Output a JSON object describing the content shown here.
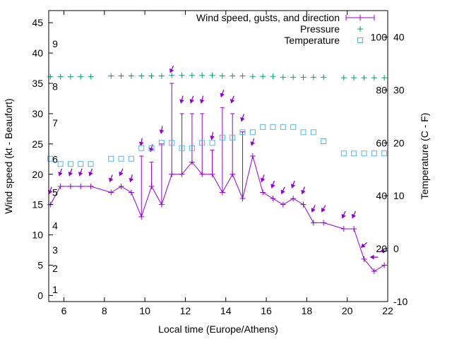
{
  "chart_data": {
    "type": "line",
    "xlabel": "Local time (Europe/Athens)",
    "ylabel": "Wind speed (kt - Beaufort)",
    "y2label": "Temperature (C - F)",
    "xlim": [
      5.25,
      22
    ],
    "ylim": [
      -1,
      47
    ],
    "y2lim": [
      -10,
      45
    ],
    "pressure_range": [
      0,
      110
    ],
    "x_ticks": [
      6,
      8,
      10,
      12,
      14,
      16,
      18,
      20,
      22
    ],
    "y_ticks": [
      0,
      5,
      10,
      15,
      20,
      25,
      30,
      35,
      40,
      45
    ],
    "y2_ticks": [
      -10,
      0,
      10,
      20,
      30,
      40
    ],
    "beaufort_labels": [
      {
        "label": "1",
        "y": 1
      },
      {
        "label": "2",
        "y": 4.5
      },
      {
        "label": "3",
        "y": 7.5
      },
      {
        "label": "4",
        "y": 11.5
      },
      {
        "label": "5",
        "y": 17
      },
      {
        "label": "6",
        "y": 22.5
      },
      {
        "label": "7",
        "y": 28.5
      },
      {
        "label": "8",
        "y": 34.5
      },
      {
        "label": "9",
        "y": 41.5
      }
    ],
    "pressure_axis_labels": [
      {
        "label": "20",
        "value": 20
      },
      {
        "label": "40",
        "value": 40
      },
      {
        "label": "60",
        "value": 60
      },
      {
        "label": "80",
        "value": 80
      },
      {
        "label": "100",
        "value": 100
      }
    ],
    "legend": [
      {
        "name": "Wind speed, gusts, and direction",
        "color": "#9400d3"
      },
      {
        "name": "Pressure",
        "color": "#009e73"
      },
      {
        "name": "Temperature",
        "color": "#56b4e9"
      }
    ],
    "wind": [
      {
        "x": 5.33,
        "speed": 15,
        "gust": 15,
        "dir": 20
      },
      {
        "x": 5.83,
        "speed": 18,
        "gust": 18,
        "dir": 20
      },
      {
        "x": 6.33,
        "speed": 18,
        "gust": 18,
        "dir": 20
      },
      {
        "x": 6.83,
        "speed": 18,
        "gust": 18,
        "dir": 20
      },
      {
        "x": 7.33,
        "speed": 18,
        "gust": 18,
        "dir": 20
      },
      {
        "x": 8.33,
        "speed": 17,
        "gust": 17,
        "dir": 20
      },
      {
        "x": 8.83,
        "speed": 18,
        "gust": 18,
        "dir": 25
      },
      {
        "x": 9.33,
        "speed": 17,
        "gust": 17,
        "dir": 15
      },
      {
        "x": 9.83,
        "speed": 13,
        "gust": 23,
        "dir": 10
      },
      {
        "x": 10.33,
        "speed": 18,
        "gust": 22,
        "dir": 15
      },
      {
        "x": 10.83,
        "speed": 15,
        "gust": 25,
        "dir": 10
      },
      {
        "x": 11.33,
        "speed": 20,
        "gust": 35,
        "dir": 25
      },
      {
        "x": 11.83,
        "speed": 20,
        "gust": 30,
        "dir": 15
      },
      {
        "x": 12.33,
        "speed": 22,
        "gust": 30,
        "dir": 20
      },
      {
        "x": 12.83,
        "speed": 20,
        "gust": 30,
        "dir": 15
      },
      {
        "x": 13.33,
        "speed": 20,
        "gust": 24,
        "dir": 10
      },
      {
        "x": 13.83,
        "speed": 17,
        "gust": 31,
        "dir": 20
      },
      {
        "x": 14.33,
        "speed": 20,
        "gust": 30,
        "dir": 20
      },
      {
        "x": 14.83,
        "speed": 16,
        "gust": 27,
        "dir": 20
      },
      {
        "x": 15.33,
        "speed": 23,
        "gust": 23,
        "dir": 20
      },
      {
        "x": 15.83,
        "speed": 17,
        "gust": 17,
        "dir": 20
      },
      {
        "x": 16.33,
        "speed": 16,
        "gust": 16,
        "dir": 20
      },
      {
        "x": 16.83,
        "speed": 15,
        "gust": 15,
        "dir": 25
      },
      {
        "x": 17.33,
        "speed": 16,
        "gust": 16,
        "dir": 20
      },
      {
        "x": 17.83,
        "speed": 15,
        "gust": 15,
        "dir": 20
      },
      {
        "x": 18.33,
        "speed": 12,
        "gust": 12,
        "dir": 25
      },
      {
        "x": 18.83,
        "speed": 12,
        "gust": 12,
        "dir": 30
      },
      {
        "x": 19.83,
        "speed": 11,
        "gust": 11,
        "dir": 25
      },
      {
        "x": 20.33,
        "speed": 11,
        "gust": 11,
        "dir": 25
      },
      {
        "x": 20.83,
        "speed": 6,
        "gust": 6,
        "dir": 50
      },
      {
        "x": 21.33,
        "speed": 4,
        "gust": 4,
        "dir": 90
      },
      {
        "x": 21.83,
        "speed": 5,
        "gust": 5,
        "dir": 90
      }
    ],
    "pressure": [
      {
        "x": 5.33,
        "y": 85
      },
      {
        "x": 5.83,
        "y": 85
      },
      {
        "x": 6.33,
        "y": 85
      },
      {
        "x": 6.83,
        "y": 85
      },
      {
        "x": 7.33,
        "y": 85
      },
      {
        "x": 8.33,
        "y": 85.3
      },
      {
        "x": 8.83,
        "y": 85.3
      },
      {
        "x": 9.33,
        "y": 85.3
      },
      {
        "x": 9.83,
        "y": 85.3
      },
      {
        "x": 10.33,
        "y": 85.3
      },
      {
        "x": 10.83,
        "y": 85.3
      },
      {
        "x": 11.33,
        "y": 85.5
      },
      {
        "x": 11.83,
        "y": 85.5
      },
      {
        "x": 12.33,
        "y": 85.5
      },
      {
        "x": 12.83,
        "y": 85.5
      },
      {
        "x": 13.33,
        "y": 85.5
      },
      {
        "x": 13.83,
        "y": 85.3
      },
      {
        "x": 14.33,
        "y": 85.3
      },
      {
        "x": 14.83,
        "y": 85.3
      },
      {
        "x": 15.33,
        "y": 85.1
      },
      {
        "x": 15.83,
        "y": 85.1
      },
      {
        "x": 16.33,
        "y": 85.1
      },
      {
        "x": 16.83,
        "y": 84.8
      },
      {
        "x": 17.33,
        "y": 84.8
      },
      {
        "x": 17.83,
        "y": 84.8
      },
      {
        "x": 18.33,
        "y": 84.8
      },
      {
        "x": 18.83,
        "y": 84.8
      },
      {
        "x": 19.83,
        "y": 84.6
      },
      {
        "x": 20.33,
        "y": 84.6
      },
      {
        "x": 20.83,
        "y": 84.6
      },
      {
        "x": 21.33,
        "y": 84.6
      },
      {
        "x": 21.83,
        "y": 84.6
      }
    ],
    "temperature": [
      {
        "x": 5.33,
        "y": 17
      },
      {
        "x": 5.83,
        "y": 16
      },
      {
        "x": 6.33,
        "y": 16
      },
      {
        "x": 6.83,
        "y": 16
      },
      {
        "x": 7.33,
        "y": 16
      },
      {
        "x": 8.33,
        "y": 17
      },
      {
        "x": 8.83,
        "y": 17
      },
      {
        "x": 9.33,
        "y": 17
      },
      {
        "x": 9.83,
        "y": 19
      },
      {
        "x": 10.33,
        "y": 19
      },
      {
        "x": 10.83,
        "y": 20
      },
      {
        "x": 11.33,
        "y": 20
      },
      {
        "x": 11.83,
        "y": 19
      },
      {
        "x": 12.33,
        "y": 19
      },
      {
        "x": 12.83,
        "y": 20
      },
      {
        "x": 13.33,
        "y": 20
      },
      {
        "x": 13.83,
        "y": 21
      },
      {
        "x": 14.33,
        "y": 21
      },
      {
        "x": 14.83,
        "y": 22
      },
      {
        "x": 15.33,
        "y": 22
      },
      {
        "x": 15.83,
        "y": 23
      },
      {
        "x": 16.33,
        "y": 23
      },
      {
        "x": 16.83,
        "y": 23
      },
      {
        "x": 17.33,
        "y": 23
      },
      {
        "x": 17.83,
        "y": 22
      },
      {
        "x": 18.33,
        "y": 22
      },
      {
        "x": 18.83,
        "y": 20.3
      },
      {
        "x": 19.83,
        "y": 18
      },
      {
        "x": 20.33,
        "y": 18
      },
      {
        "x": 20.83,
        "y": 18
      },
      {
        "x": 21.33,
        "y": 18
      },
      {
        "x": 21.83,
        "y": 18
      }
    ]
  }
}
